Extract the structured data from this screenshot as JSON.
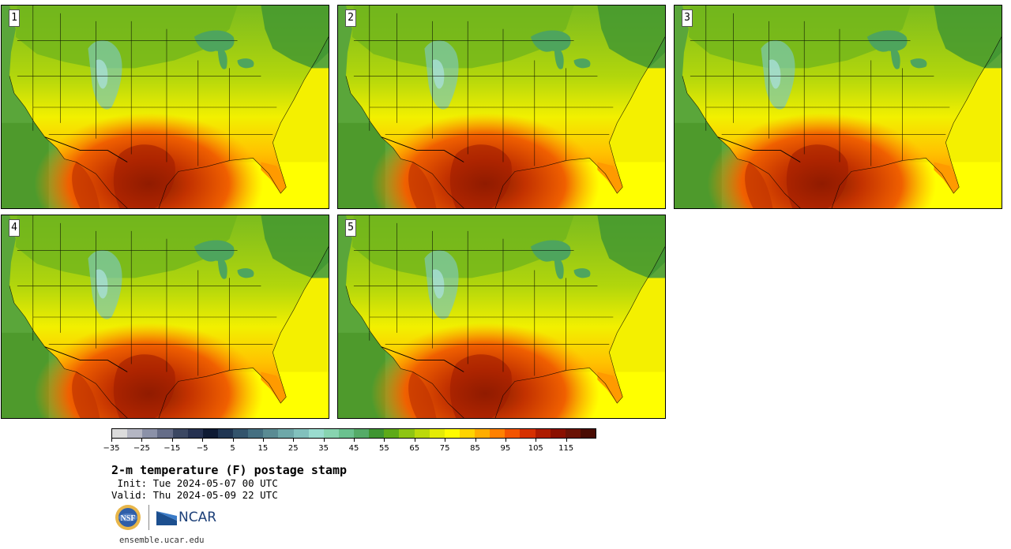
{
  "panels": [
    {
      "label": "1"
    },
    {
      "label": "2"
    },
    {
      "label": "3"
    },
    {
      "label": "4"
    },
    {
      "label": "5"
    }
  ],
  "colorbar": {
    "colors": [
      "#dcdcdc",
      "#b4b6c3",
      "#8b91a8",
      "#656d88",
      "#3b4762",
      "#253150",
      "#0e1a33",
      "#1f3552",
      "#33546c",
      "#446f81",
      "#5a8b93",
      "#6ea8a9",
      "#82c1bd",
      "#9adccf",
      "#88d4b0",
      "#6bc18f",
      "#55ab68",
      "#3f9532",
      "#5eaa18",
      "#8ec514",
      "#bcd90c",
      "#e4eb05",
      "#fffb00",
      "#ffd400",
      "#ffad00",
      "#ff8100",
      "#f35400",
      "#d63000",
      "#ad1b00",
      "#8a1000",
      "#6b1205",
      "#4a0c03"
    ],
    "tick_labels": [
      "−35",
      "−25",
      "−15",
      "−5",
      "5",
      "15",
      "25",
      "35",
      "45",
      "55",
      "65",
      "75",
      "85",
      "95",
      "105",
      "115"
    ],
    "min": -35,
    "max": 125,
    "step": 5
  },
  "title": "2-m temperature (F) postage stamp",
  "init": " Init: Tue 2024-05-07 00 UTC",
  "valid": "Valid: Thu 2024-05-09 22 UTC",
  "logos": {
    "nsf": "NSF",
    "ncar": "NCAR"
  },
  "site": "ensemble.ucar.edu"
}
